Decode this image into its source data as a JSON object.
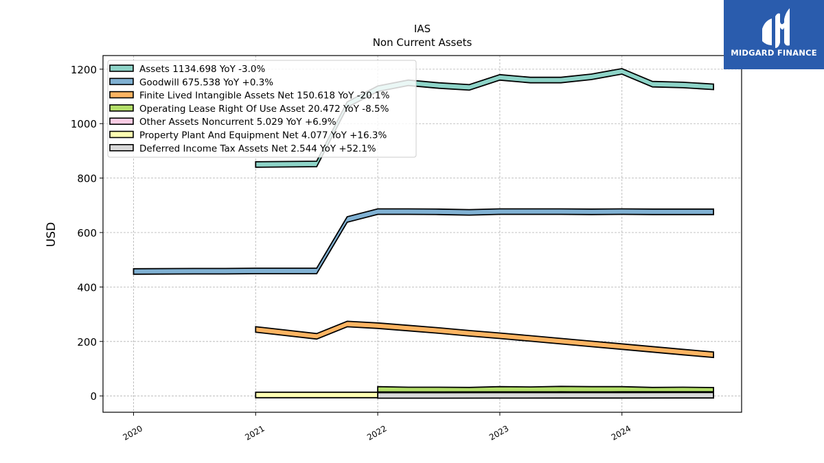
{
  "logo": {
    "text": "MIDGARD FINANCE",
    "bg_color": "#2a5cad"
  },
  "chart_data": {
    "type": "area",
    "title": "IAS",
    "subtitle": "Non Current  Assets",
    "ylabel": "USD",
    "xlabel": "",
    "xlim": [
      2019.75,
      2024.98
    ],
    "ylim": [
      -60,
      1250
    ],
    "x_ticks": [
      2020,
      2021,
      2022,
      2023,
      2024
    ],
    "x_tick_labels": [
      "2020",
      "2021",
      "2022",
      "2023",
      "2024"
    ],
    "y_ticks": [
      0,
      200,
      400,
      600,
      800,
      1000,
      1200
    ],
    "y_tick_labels": [
      "0",
      "200",
      "400",
      "600",
      "800",
      "1000",
      "1200"
    ],
    "grid": true,
    "legend_position": "top-left",
    "series": [
      {
        "name": "Assets",
        "legend_label": "Assets  1134.698 YoY -3.0%",
        "color": "#8dd3c7",
        "x": [
          2021.0,
          2021.5,
          2021.75,
          2022.0,
          2022.25,
          2022.5,
          2022.75,
          2023.0,
          2023.25,
          2023.5,
          2023.75,
          2024.0,
          2024.25,
          2024.5,
          2024.75
        ],
        "y": [
          850,
          852,
          1070,
          1128,
          1150,
          1140,
          1133,
          1170,
          1160,
          1160,
          1172,
          1192,
          1145,
          1142,
          1135
        ]
      },
      {
        "name": "Goodwill",
        "legend_label": "Goodwill  675.538 YoY +0.3%",
        "color": "#80b1d3",
        "x": [
          2020.0,
          2020.5,
          2020.75,
          2021.0,
          2021.25,
          2021.5,
          2021.75,
          2022.0,
          2022.25,
          2022.5,
          2022.75,
          2023.0,
          2023.25,
          2023.5,
          2023.75,
          2024.0,
          2024.25,
          2024.5,
          2024.75
        ],
        "y": [
          457,
          458,
          458,
          459,
          459,
          459,
          648,
          677,
          677,
          676,
          674,
          677,
          677,
          677,
          676,
          677,
          676,
          676,
          676
        ]
      },
      {
        "name": "Finite Lived Intangible Assets Net",
        "legend_label": "Finite Lived Intangible Assets Net  150.618 YoY -20.1%",
        "color": "#fdb462",
        "x": [
          2021.0,
          2021.5,
          2021.75,
          2022.0,
          2022.25,
          2022.5,
          2022.75,
          2023.0,
          2023.25,
          2023.5,
          2023.75,
          2024.0,
          2024.25,
          2024.5,
          2024.75
        ],
        "y": [
          244,
          219,
          264,
          258,
          249,
          240,
          230,
          221,
          211,
          201,
          191,
          181,
          171,
          161,
          151
        ]
      },
      {
        "name": "Operating Lease Right Of Use Asset",
        "legend_label": "Operating Lease Right Of Use Asset  20.472 YoY -8.5%",
        "color": "#b3de69",
        "x": [
          2022.0,
          2022.25,
          2022.5,
          2022.75,
          2023.0,
          2023.25,
          2023.5,
          2023.75,
          2024.0,
          2024.25,
          2024.5,
          2024.75
        ],
        "y": [
          24,
          22,
          22,
          21,
          24,
          23,
          25,
          24,
          24,
          21,
          22,
          20.5
        ]
      },
      {
        "name": "Other Assets Noncurrent",
        "legend_label": "Other Assets Noncurrent  5.029 YoY +6.9%",
        "color": "#fccde5",
        "x": [
          2022.0,
          2022.5,
          2023.0,
          2023.5,
          2024.0,
          2024.5,
          2024.75
        ],
        "y": [
          4.5,
          4.6,
          4.7,
          4.8,
          4.9,
          5.0,
          5.0
        ]
      },
      {
        "name": "Property Plant And Equipment Net",
        "legend_label": "Property Plant And Equipment Net  4.077 YoY +16.3%",
        "color": "#ffffb3",
        "x": [
          2021.0,
          2021.5,
          2022.0,
          2022.5,
          2023.0,
          2023.5,
          2024.0,
          2024.5,
          2024.75
        ],
        "y": [
          3.5,
          3.5,
          3.6,
          3.6,
          3.7,
          3.8,
          3.9,
          4.0,
          4.1
        ]
      },
      {
        "name": "Deferred Income Tax Assets Net",
        "legend_label": "Deferred Income Tax Assets Net  2.544 YoY +52.1%",
        "color": "#d9d9d9",
        "x": [
          2022.0,
          2022.5,
          2023.0,
          2023.5,
          2024.0,
          2024.5,
          2024.75
        ],
        "y": [
          1.7,
          1.8,
          2.0,
          2.1,
          2.3,
          2.4,
          2.5
        ]
      }
    ]
  }
}
